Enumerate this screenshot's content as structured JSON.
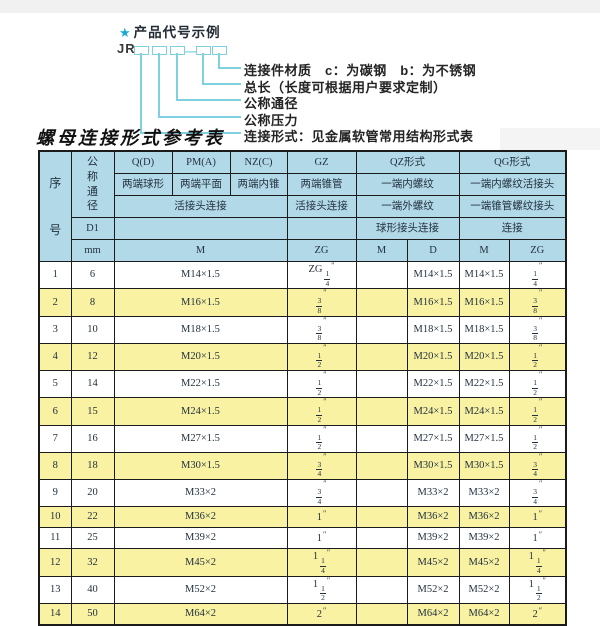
{
  "colors": {
    "header_bg": "#b2d9e8",
    "row_alt": "#f8f2a2",
    "border": "#1b1b1b",
    "line": "#7fd0e1",
    "star": "#1aa8d8"
  },
  "diagram": {
    "star": "★",
    "heading": "产品代号示例",
    "prefix": "JR",
    "dash": "—",
    "labels": [
      "连接件材质　c：为碳钢　b：为不锈钢",
      "总长（长度可根据用户要求定制）",
      "公称通径",
      "公称压力",
      "连接形式：见金属软管常用结构形式表"
    ]
  },
  "table": {
    "title": "螺母连接形式参考表",
    "header": {
      "seq": "序号",
      "dn": "公称通径",
      "d1": "D1",
      "mm": "mm",
      "groups": [
        {
          "code": "Q(D)",
          "desc": "两端球形"
        },
        {
          "code": "PM(A)",
          "desc": "两端平面"
        },
        {
          "code": "NZ(C)",
          "desc": "两端内锥"
        },
        {
          "code": "GZ",
          "desc": "两端锥管"
        }
      ],
      "joint_left": "活接头连接",
      "joint_gz": "活接头连接",
      "qz": {
        "code": "QZ形式",
        "r2": "一端内螺纹",
        "r3": "一端外螺纹",
        "r4": "球形接头连接",
        "m": "M",
        "d": "D"
      },
      "qg": {
        "code": "QG形式",
        "r2": "一端内螺纹活接头",
        "r3": "一端锥管螺纹接头",
        "r4": "连接",
        "m": "M",
        "zg": "ZG"
      },
      "m_label": "M",
      "zg_label": "ZG"
    },
    "rows": [
      {
        "no": "1",
        "dn": "6",
        "m": "M14×1.5",
        "zg": "ZG 1/4″",
        "qz_m": "",
        "qz_d": "M14×1.5",
        "qg_m": "M14×1.5",
        "qg_zg": "1/4″"
      },
      {
        "no": "2",
        "dn": "8",
        "m": "M16×1.5",
        "zg": "3/8″",
        "qz_m": "",
        "qz_d": "M16×1.5",
        "qg_m": "M16×1.5",
        "qg_zg": "3/8″"
      },
      {
        "no": "3",
        "dn": "10",
        "m": "M18×1.5",
        "zg": "3/8″",
        "qz_m": "",
        "qz_d": "M18×1.5",
        "qg_m": "M18×1.5",
        "qg_zg": "3/8″"
      },
      {
        "no": "4",
        "dn": "12",
        "m": "M20×1.5",
        "zg": "1/2″",
        "qz_m": "",
        "qz_d": "M20×1.5",
        "qg_m": "M20×1.5",
        "qg_zg": "1/2″"
      },
      {
        "no": "5",
        "dn": "14",
        "m": "M22×1.5",
        "zg": "1/2″",
        "qz_m": "",
        "qz_d": "M22×1.5",
        "qg_m": "M22×1.5",
        "qg_zg": "1/2″"
      },
      {
        "no": "6",
        "dn": "15",
        "m": "M24×1.5",
        "zg": "1/2″",
        "qz_m": "",
        "qz_d": "M24×1.5",
        "qg_m": "M24×1.5",
        "qg_zg": "1/2″"
      },
      {
        "no": "7",
        "dn": "16",
        "m": "M27×1.5",
        "zg": "1/2″",
        "qz_m": "",
        "qz_d": "M27×1.5",
        "qg_m": "M27×1.5",
        "qg_zg": "1/2″"
      },
      {
        "no": "8",
        "dn": "18",
        "m": "M30×1.5",
        "zg": "3/4″",
        "qz_m": "",
        "qz_d": "M30×1.5",
        "qg_m": "M30×1.5",
        "qg_zg": "3/4″"
      },
      {
        "no": "9",
        "dn": "20",
        "m": "M33×2",
        "zg": "3/4″",
        "qz_m": "",
        "qz_d": "M33×2",
        "qg_m": "M33×2",
        "qg_zg": "3/4″"
      },
      {
        "no": "10",
        "dn": "22",
        "m": "M36×2",
        "zg": "1″",
        "qz_m": "",
        "qz_d": "M36×2",
        "qg_m": "M36×2",
        "qg_zg": "1″"
      },
      {
        "no": "11",
        "dn": "25",
        "m": "M39×2",
        "zg": "1″",
        "qz_m": "",
        "qz_d": "M39×2",
        "qg_m": "M39×2",
        "qg_zg": "1″"
      },
      {
        "no": "12",
        "dn": "32",
        "m": "M45×2",
        "zg": "1 1/4″",
        "qz_m": "",
        "qz_d": "M45×2",
        "qg_m": "M45×2",
        "qg_zg": "1 1/4″"
      },
      {
        "no": "13",
        "dn": "40",
        "m": "M52×2",
        "zg": "1 1/2″",
        "qz_m": "",
        "qz_d": "M52×2",
        "qg_m": "M52×2",
        "qg_zg": "1 1/2″"
      },
      {
        "no": "14",
        "dn": "50",
        "m": "M64×2",
        "zg": "2″",
        "qz_m": "",
        "qz_d": "M64×2",
        "qg_m": "M64×2",
        "qg_zg": "2″"
      }
    ]
  }
}
